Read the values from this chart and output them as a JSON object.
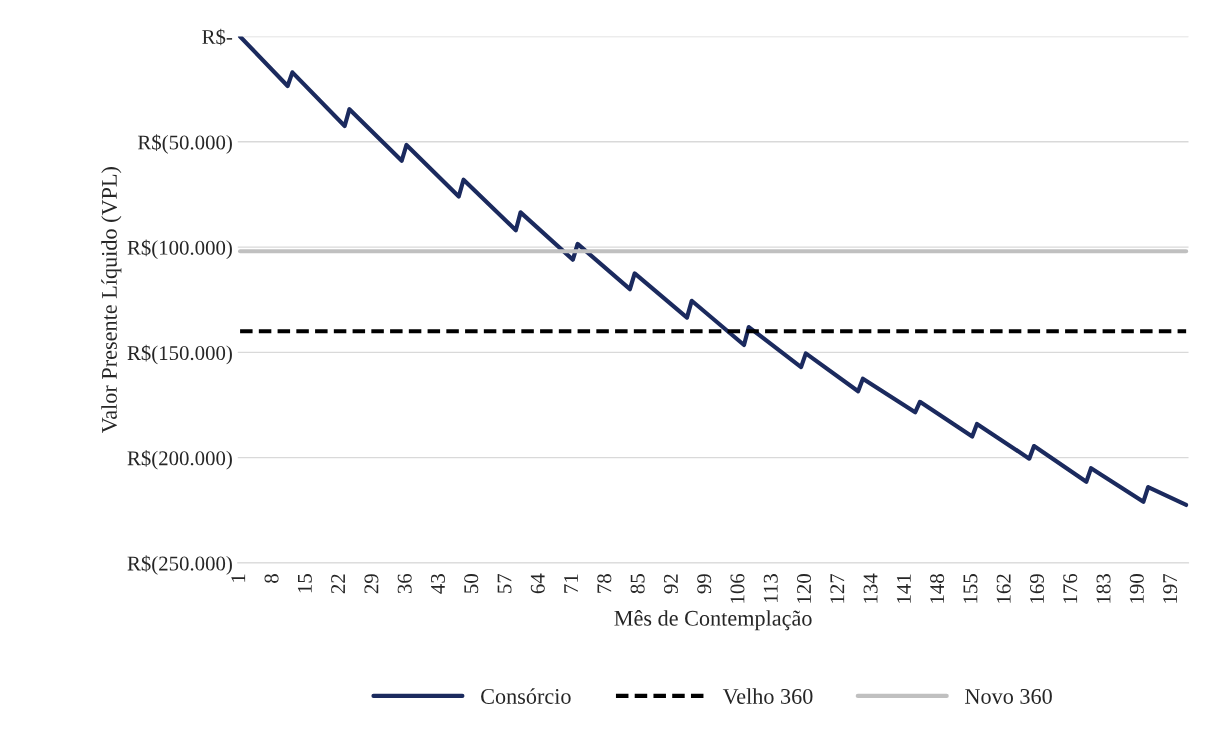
{
  "chart_data": {
    "type": "line",
    "xlabel": "Mês de Contemplação",
    "ylabel": "Valor Presente Líquido (VPL)",
    "xlim": [
      0.5,
      200.5
    ],
    "xticks": [
      1,
      8,
      15,
      22,
      29,
      36,
      43,
      50,
      57,
      64,
      71,
      78,
      85,
      92,
      99,
      106,
      113,
      120,
      127,
      134,
      141,
      148,
      155,
      162,
      169,
      176,
      183,
      190,
      197
    ],
    "ylim": [
      -250000,
      0
    ],
    "yticks": [
      {
        "value": -250000,
        "label": "R$(250.000)"
      },
      {
        "value": -200000,
        "label": "R$(200.000)"
      },
      {
        "value": -150000,
        "label": "R$(150.000)"
      },
      {
        "value": -100000,
        "label": "R$(100.000)"
      },
      {
        "value": -50000,
        "label": "R$(50.000)"
      },
      {
        "value": 0,
        "label": "R$-"
      }
    ],
    "grid": "y",
    "legend": "bottom",
    "series": [
      {
        "name": "Consórcio",
        "color": "#1b2a5e",
        "line_style": "solid",
        "x": [
          1,
          11,
          12,
          23,
          24,
          35,
          36,
          47,
          48,
          59,
          60,
          71,
          72,
          83,
          84,
          95,
          96,
          107,
          108,
          119,
          120,
          131,
          132,
          143,
          144,
          155,
          156,
          167,
          168,
          179,
          180,
          191,
          192,
          200
        ],
        "values": [
          0,
          -23500,
          -17000,
          -42500,
          -34500,
          -59000,
          -51500,
          -76000,
          -68000,
          -92000,
          -83500,
          -106000,
          -98500,
          -120000,
          -112500,
          -133500,
          -125500,
          -146500,
          -138000,
          -157000,
          -150500,
          -168500,
          -162500,
          -178500,
          -173500,
          -190000,
          -184000,
          -200500,
          -194500,
          -211500,
          -205000,
          -221000,
          -214000,
          -222500
        ]
      },
      {
        "name": "Velho 360",
        "color": "#000000",
        "line_style": "dashed",
        "x": [
          1,
          200
        ],
        "values": [
          -140000,
          -140000
        ]
      },
      {
        "name": "Novo 360",
        "color": "#c0c0c0",
        "line_style": "solid",
        "x": [
          1,
          200
        ],
        "values": [
          -102000,
          -102000
        ]
      }
    ]
  }
}
